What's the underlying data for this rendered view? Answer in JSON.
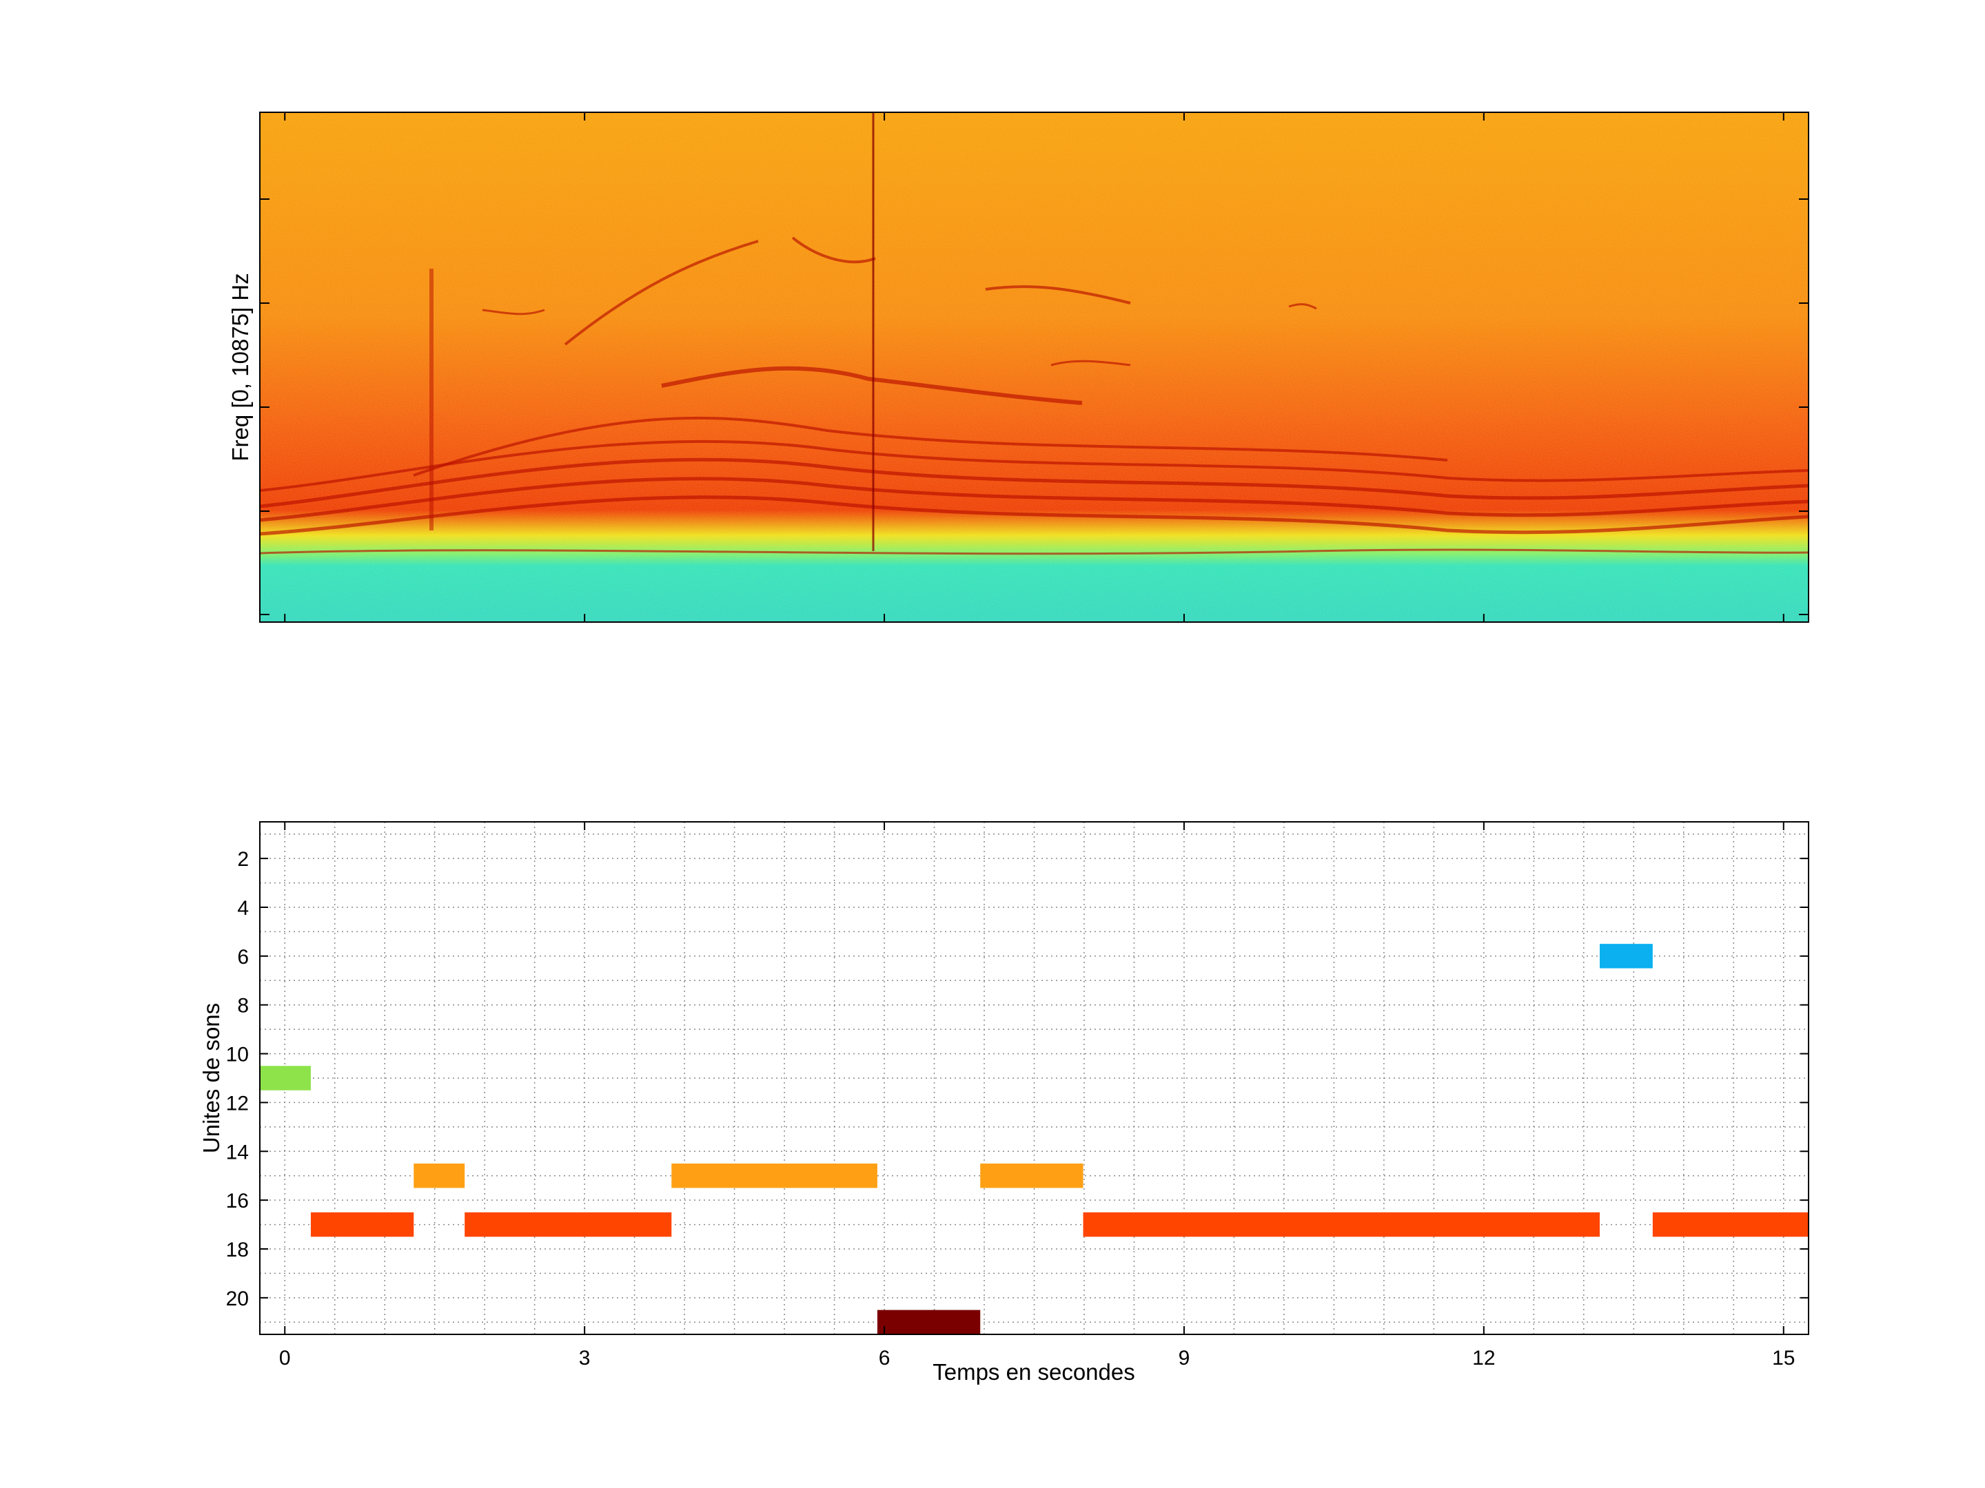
{
  "chart_data": [
    {
      "type": "heatmap",
      "title": "",
      "xlabel": "",
      "ylabel": "Freq [0, 10875] Hz",
      "xlim": [
        -0.25,
        15.25
      ],
      "ylim": [
        0,
        10875
      ],
      "colormap": "jet",
      "grid": false,
      "x_ticks": [
        0,
        3,
        6,
        9,
        12,
        15
      ],
      "x_tick_labels": [],
      "y_tick_labels": []
    },
    {
      "type": "bar",
      "orientation": "horizontal-segments",
      "title": "",
      "xlabel": "Temps en secondes",
      "ylabel": "Unites de sons",
      "xlim": [
        -0.25,
        15.25
      ],
      "ylim": [
        21.5,
        0.5
      ],
      "y_reversed": true,
      "grid": true,
      "x_ticks": [
        0,
        3,
        6,
        9,
        12,
        15
      ],
      "x_tick_labels": [
        "0",
        "3",
        "6",
        "9",
        "12",
        "15"
      ],
      "y_ticks": [
        2,
        4,
        6,
        8,
        10,
        12,
        14,
        16,
        18,
        20
      ],
      "y_tick_labels": [
        "2",
        "4",
        "6",
        "8",
        "10",
        "12",
        "14",
        "16",
        "18",
        "20"
      ],
      "segments": [
        {
          "unit": 11,
          "start": -0.25,
          "end": 0.26,
          "color": "#8ee34a"
        },
        {
          "unit": 17,
          "start": 0.26,
          "end": 1.29,
          "color": "#ff4500"
        },
        {
          "unit": 15,
          "start": 1.29,
          "end": 1.8,
          "color": "#ffa014"
        },
        {
          "unit": 17,
          "start": 1.8,
          "end": 3.87,
          "color": "#ff4500"
        },
        {
          "unit": 15,
          "start": 3.87,
          "end": 5.93,
          "color": "#ffa014"
        },
        {
          "unit": 21,
          "start": 5.93,
          "end": 6.96,
          "color": "#7a0000"
        },
        {
          "unit": 15,
          "start": 6.96,
          "end": 7.99,
          "color": "#ffa014"
        },
        {
          "unit": 17,
          "start": 7.99,
          "end": 13.16,
          "color": "#ff4500"
        },
        {
          "unit": 6,
          "start": 13.16,
          "end": 13.69,
          "color": "#0ab0f0"
        },
        {
          "unit": 17,
          "start": 13.69,
          "end": 15.25,
          "color": "#ff4500"
        }
      ]
    }
  ]
}
